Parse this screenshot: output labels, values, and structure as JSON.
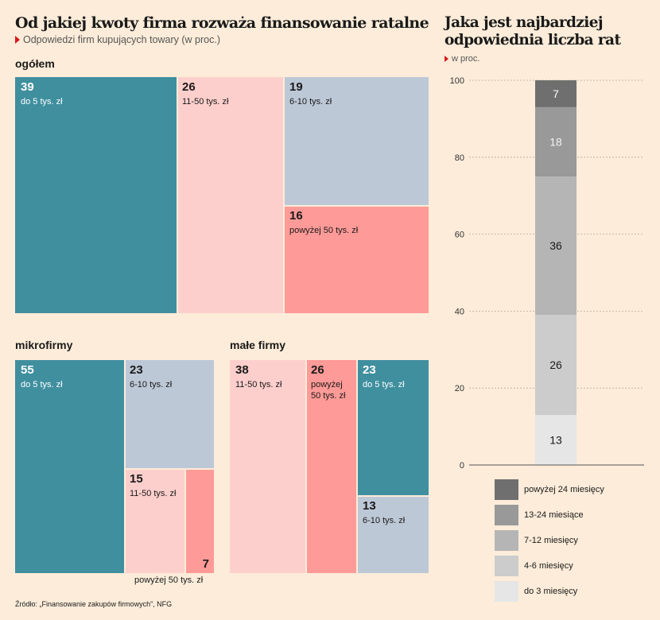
{
  "left": {
    "title": "Od jakiej kwoty firma rozważa finansowanie ratalne",
    "subtitle": "Odpowiedzi firm kupujących towary (w proc.)"
  },
  "right": {
    "title_line1": "Jaka jest najbardziej",
    "title_line2": "odpowiednia liczba rat",
    "subtitle": "w proc."
  },
  "source": "Źródło: „Finansowanie zakupów firmowych”, NFG",
  "colors": {
    "background": "#fcecd9",
    "teal": "#3f8f9f",
    "pink_light": "#fdcfcc",
    "blue_grey": "#bdc8d7",
    "salmon": "#fe9a97",
    "grey_darkest": "#6f6f6f",
    "grey_dark": "#999999",
    "grey_mid": "#b5b5b5",
    "grey_light": "#cccccc",
    "grey_lightest": "#e6e6e6",
    "accent_red": "#d7191c"
  },
  "chart_data": [
    {
      "type": "treemap",
      "section": "ogółem",
      "items": [
        {
          "value": 39,
          "label": "do 5 tys. zł"
        },
        {
          "value": 26,
          "label": "11-50 tys. zł"
        },
        {
          "value": 19,
          "label": "6-10 tys. zł"
        },
        {
          "value": 16,
          "label": "powyżej 50 tys. zł"
        }
      ]
    },
    {
      "type": "treemap",
      "section": "mikrofirmy",
      "items": [
        {
          "value": 55,
          "label": "do 5 tys. zł"
        },
        {
          "value": 23,
          "label": "6-10 tys. zł"
        },
        {
          "value": 15,
          "label": "11-50 tys. zł"
        },
        {
          "value": 7,
          "label": "powyżej 50 tys. zł"
        }
      ]
    },
    {
      "type": "treemap",
      "section": "małe firmy",
      "items": [
        {
          "value": 38,
          "label": "11-50 tys. zł"
        },
        {
          "value": 26,
          "label": "powyżej 50 tys. zł",
          "label_lines": [
            "powyżej",
            "50 tys. zł"
          ]
        },
        {
          "value": 23,
          "label": "do 5 tys. zł"
        },
        {
          "value": 13,
          "label": "6-10 tys. zł"
        }
      ]
    },
    {
      "type": "bar",
      "stacked": true,
      "ylim": [
        0,
        100
      ],
      "yticks": [
        0,
        20,
        40,
        60,
        80,
        100
      ],
      "grid": true,
      "legend_position": "bottom",
      "series": [
        {
          "name": "do 3 miesięcy",
          "value": 13,
          "color": "#e6e6e6"
        },
        {
          "name": "4-6 miesięcy",
          "value": 26,
          "color": "#cccccc"
        },
        {
          "name": "7-12 miesięcy",
          "value": 36,
          "color": "#b5b5b5"
        },
        {
          "name": "13-24 miesiące",
          "value": 18,
          "color": "#999999"
        },
        {
          "name": "powyżej 24 miesięcy",
          "value": 7,
          "color": "#6f6f6f"
        }
      ]
    }
  ]
}
